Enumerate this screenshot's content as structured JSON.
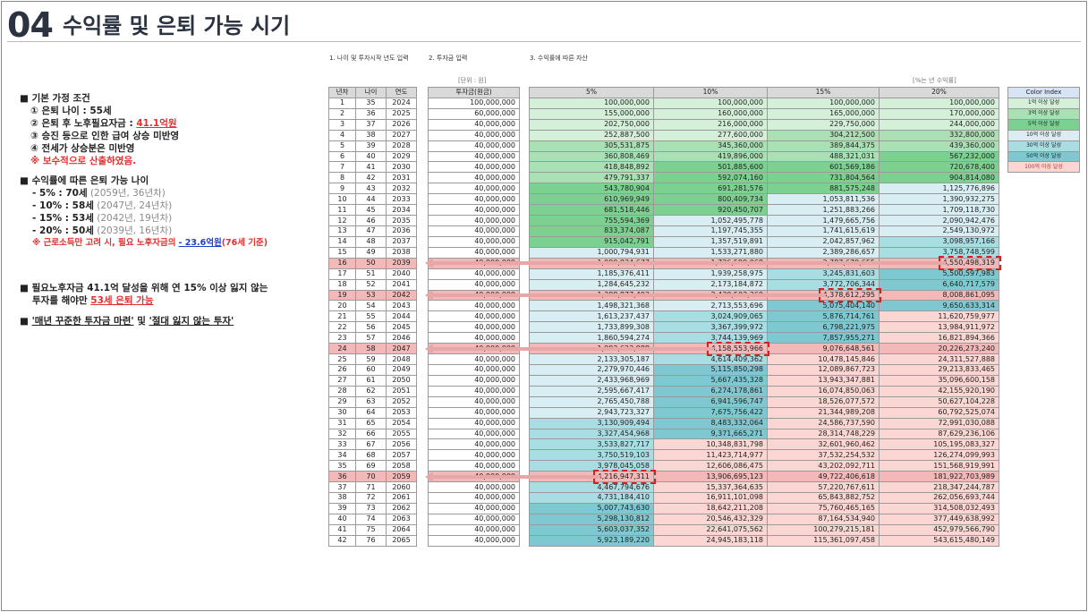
{
  "title": {
    "number": "04",
    "text": "수익률 및 은퇴 가능 시기"
  },
  "steps": [
    "1. 나이 및 투자시작 년도 입력",
    "2. 투자금 입력",
    "3. 수익률에 따른 자산"
  ],
  "notes": {
    "unit": "[단위 : 원]",
    "rate": "[%는 년 수익률]"
  },
  "left": {
    "assumptions_title": "■ 기본 가정 조건",
    "a1": "① 은퇴 나이 : 55세",
    "a2_prefix": "② 은퇴 후 노후필요자금 : ",
    "a2_value": "41.1억원",
    "a3": "③ 승진 등으로 인한 급여 상승 미반영",
    "a4": "④ 전세가 상승분은 미반영",
    "a5": "※ 보수적으로 산출하였음.",
    "ages_title": "■ 수익률에 따른 은퇴 가능 나이",
    "r1_main": "- 5% : 70세",
    "r1_sub": " (2059년, 36년차)",
    "r2_main": "- 10% : 58세",
    "r2_sub": " (2047년, 24년차)",
    "r3_main": "- 15% : 53세",
    "r3_sub": " (2042년, 19년차)",
    "r4_main": "- 20% : 50세",
    "r4_sub": " (2039년, 16년차)",
    "r5_prefix": "※ 근로소득만 고려 시, 필요 노후자금의",
    "r5_value": "- 23.6억원",
    "r5_suffix": "(76세 기준)",
    "c1_line1": "■ 필요노후자금 41.1억 달성을 위해 연 15% 이상 잃지 않는",
    "c1_line2_prefix": "투자를 해야만 ",
    "c1_line2_value": "53세 은퇴 가능",
    "c2_prefix": "■ ",
    "c2_a": "'매년 꾸준한 투자금 마련'",
    "c2_mid": " 및 ",
    "c2_b": "'절대 잃지 않는 투자'"
  },
  "table_headers": {
    "year_no": "년차",
    "age": "나이",
    "year": "연도",
    "invest": "투자금(원금)",
    "r5": "5%",
    "r10": "10%",
    "r15": "15%",
    "r20": "20%"
  },
  "rows": [
    {
      "n": "1",
      "age": "35",
      "year": "2024",
      "inv": "100,000,000",
      "v5": "100,000,000",
      "v10": "100,000,000",
      "v15": "100,000,000",
      "v20": "100,000,000"
    },
    {
      "n": "2",
      "age": "36",
      "year": "2025",
      "inv": "60,000,000",
      "v5": "155,000,000",
      "v10": "160,000,000",
      "v15": "165,000,000",
      "v20": "170,000,000"
    },
    {
      "n": "3",
      "age": "37",
      "year": "2026",
      "inv": "40,000,000",
      "v5": "202,750,000",
      "v10": "216,000,000",
      "v15": "229,750,000",
      "v20": "244,000,000"
    },
    {
      "n": "4",
      "age": "38",
      "year": "2027",
      "inv": "40,000,000",
      "v5": "252,887,500",
      "v10": "277,600,000",
      "v15": "304,212,500",
      "v20": "332,800,000"
    },
    {
      "n": "5",
      "age": "39",
      "year": "2028",
      "inv": "40,000,000",
      "v5": "305,531,875",
      "v10": "345,360,000",
      "v15": "389,844,375",
      "v20": "439,360,000"
    },
    {
      "n": "6",
      "age": "40",
      "year": "2029",
      "inv": "40,000,000",
      "v5": "360,808,469",
      "v10": "419,896,000",
      "v15": "488,321,031",
      "v20": "567,232,000"
    },
    {
      "n": "7",
      "age": "41",
      "year": "2030",
      "inv": "40,000,000",
      "v5": "418,848,892",
      "v10": "501,885,600",
      "v15": "601,569,186",
      "v20": "720,678,400"
    },
    {
      "n": "8",
      "age": "42",
      "year": "2031",
      "inv": "40,000,000",
      "v5": "479,791,337",
      "v10": "592,074,160",
      "v15": "731,804,564",
      "v20": "904,814,080"
    },
    {
      "n": "9",
      "age": "43",
      "year": "2032",
      "inv": "40,000,000",
      "v5": "543,780,904",
      "v10": "691,281,576",
      "v15": "881,575,248",
      "v20": "1,125,776,896"
    },
    {
      "n": "10",
      "age": "44",
      "year": "2033",
      "inv": "40,000,000",
      "v5": "610,969,949",
      "v10": "800,409,734",
      "v15": "1,053,811,536",
      "v20": "1,390,932,275"
    },
    {
      "n": "11",
      "age": "45",
      "year": "2034",
      "inv": "40,000,000",
      "v5": "681,518,446",
      "v10": "920,450,707",
      "v15": "1,251,883,266",
      "v20": "1,709,118,730"
    },
    {
      "n": "12",
      "age": "46",
      "year": "2035",
      "inv": "40,000,000",
      "v5": "755,594,369",
      "v10": "1,052,495,778",
      "v15": "1,479,665,756",
      "v20": "2,090,942,476"
    },
    {
      "n": "13",
      "age": "47",
      "year": "2036",
      "inv": "40,000,000",
      "v5": "833,374,087",
      "v10": "1,197,745,355",
      "v15": "1,741,615,619",
      "v20": "2,549,130,972"
    },
    {
      "n": "14",
      "age": "48",
      "year": "2037",
      "inv": "40,000,000",
      "v5": "915,042,791",
      "v10": "1,357,519,891",
      "v15": "2,042,857,962",
      "v20": "3,098,957,166"
    },
    {
      "n": "15",
      "age": "49",
      "year": "2038",
      "inv": "40,000,000",
      "v5": "1,000,794,931",
      "v10": "1,533,271,880",
      "v15": "2,389,286,657",
      "v20": "3,758,748,599"
    },
    {
      "n": "16",
      "age": "50",
      "year": "2039",
      "inv": "40,000,000",
      "v5": "1,090,834,677",
      "v10": "1,726,599,068",
      "v15": "2,787,679,655",
      "v20": "4,550,498,319"
    },
    {
      "n": "17",
      "age": "51",
      "year": "2040",
      "inv": "40,000,000",
      "v5": "1,185,376,411",
      "v10": "1,939,258,975",
      "v15": "3,245,831,603",
      "v20": "5,500,597,983"
    },
    {
      "n": "18",
      "age": "52",
      "year": "2041",
      "inv": "40,000,000",
      "v5": "1,284,645,232",
      "v10": "2,173,184,872",
      "v15": "3,772,706,344",
      "v20": "6,640,717,579"
    },
    {
      "n": "19",
      "age": "53",
      "year": "2042",
      "inv": "40,000,000",
      "v5": "1,388,877,493",
      "v10": "2,430,503,360",
      "v15": "4,378,612,295",
      "v20": "8,008,861,095"
    },
    {
      "n": "20",
      "age": "54",
      "year": "2043",
      "inv": "40,000,000",
      "v5": "1,498,321,368",
      "v10": "2,713,553,696",
      "v15": "5,075,404,140",
      "v20": "9,650,633,314"
    },
    {
      "n": "21",
      "age": "55",
      "year": "2044",
      "inv": "40,000,000",
      "v5": "1,613,237,437",
      "v10": "3,024,909,065",
      "v15": "5,876,714,761",
      "v20": "11,620,759,977"
    },
    {
      "n": "22",
      "age": "56",
      "year": "2045",
      "inv": "40,000,000",
      "v5": "1,733,899,308",
      "v10": "3,367,399,972",
      "v15": "6,798,221,975",
      "v20": "13,984,911,972"
    },
    {
      "n": "23",
      "age": "57",
      "year": "2046",
      "inv": "40,000,000",
      "v5": "1,860,594,274",
      "v10": "3,744,139,969",
      "v15": "7,857,955,271",
      "v20": "16,821,894,366"
    },
    {
      "n": "24",
      "age": "58",
      "year": "2047",
      "inv": "40,000,000",
      "v5": "1,993,623,988",
      "v10": "4,158,553,966",
      "v15": "9,076,648,561",
      "v20": "20,226,273,240"
    },
    {
      "n": "25",
      "age": "59",
      "year": "2048",
      "inv": "40,000,000",
      "v5": "2,133,305,187",
      "v10": "4,614,409,362",
      "v15": "10,478,145,846",
      "v20": "24,311,527,888"
    },
    {
      "n": "26",
      "age": "60",
      "year": "2049",
      "inv": "40,000,000",
      "v5": "2,279,970,446",
      "v10": "5,115,850,298",
      "v15": "12,089,867,723",
      "v20": "29,213,833,465"
    },
    {
      "n": "27",
      "age": "61",
      "year": "2050",
      "inv": "40,000,000",
      "v5": "2,433,968,969",
      "v10": "5,667,435,328",
      "v15": "13,943,347,881",
      "v20": "35,096,600,158"
    },
    {
      "n": "28",
      "age": "62",
      "year": "2051",
      "inv": "40,000,000",
      "v5": "2,595,667,417",
      "v10": "6,274,178,861",
      "v15": "16,074,850,063",
      "v20": "42,155,920,190"
    },
    {
      "n": "29",
      "age": "63",
      "year": "2052",
      "inv": "40,000,000",
      "v5": "2,765,450,788",
      "v10": "6,941,596,747",
      "v15": "18,526,077,572",
      "v20": "50,627,104,228"
    },
    {
      "n": "30",
      "age": "64",
      "year": "2053",
      "inv": "40,000,000",
      "v5": "2,943,723,327",
      "v10": "7,675,756,422",
      "v15": "21,344,989,208",
      "v20": "60,792,525,074"
    },
    {
      "n": "31",
      "age": "65",
      "year": "2054",
      "inv": "40,000,000",
      "v5": "3,130,909,494",
      "v10": "8,483,332,064",
      "v15": "24,586,737,590",
      "v20": "72,991,030,088"
    },
    {
      "n": "32",
      "age": "66",
      "year": "2055",
      "inv": "40,000,000",
      "v5": "3,327,454,968",
      "v10": "9,371,665,271",
      "v15": "28,314,748,229",
      "v20": "87,629,236,106"
    },
    {
      "n": "33",
      "age": "67",
      "year": "2056",
      "inv": "40,000,000",
      "v5": "3,533,827,717",
      "v10": "10,348,831,798",
      "v15": "32,601,960,462",
      "v20": "105,195,083,327"
    },
    {
      "n": "34",
      "age": "68",
      "year": "2057",
      "inv": "40,000,000",
      "v5": "3,750,519,103",
      "v10": "11,423,714,977",
      "v15": "37,532,254,532",
      "v20": "126,274,099,993"
    },
    {
      "n": "35",
      "age": "69",
      "year": "2058",
      "inv": "40,000,000",
      "v5": "3,978,045,058",
      "v10": "12,606,086,475",
      "v15": "43,202,092,711",
      "v20": "151,568,919,991"
    },
    {
      "n": "36",
      "age": "70",
      "year": "2059",
      "inv": "40,000,000",
      "v5": "4,216,947,311",
      "v10": "13,906,695,123",
      "v15": "49,722,406,618",
      "v20": "181,922,703,989"
    },
    {
      "n": "37",
      "age": "71",
      "year": "2060",
      "inv": "40,000,000",
      "v5": "4,467,794,676",
      "v10": "15,337,364,635",
      "v15": "57,220,767,611",
      "v20": "218,347,244,787"
    },
    {
      "n": "38",
      "age": "72",
      "year": "2061",
      "inv": "40,000,000",
      "v5": "4,731,184,410",
      "v10": "16,911,101,098",
      "v15": "65,843,882,752",
      "v20": "262,056,693,744"
    },
    {
      "n": "39",
      "age": "73",
      "year": "2062",
      "inv": "40,000,000",
      "v5": "5,007,743,630",
      "v10": "18,642,211,208",
      "v15": "75,760,465,165",
      "v20": "314,508,032,493"
    },
    {
      "n": "40",
      "age": "74",
      "year": "2063",
      "inv": "40,000,000",
      "v5": "5,298,130,812",
      "v10": "20,546,432,329",
      "v15": "87,164,534,940",
      "v20": "377,449,638,992"
    },
    {
      "n": "41",
      "age": "75",
      "year": "2064",
      "inv": "40,000,000",
      "v5": "5,603,037,352",
      "v10": "22,641,075,562",
      "v15": "100,279,215,181",
      "v20": "452,979,566,790"
    },
    {
      "n": "42",
      "age": "76",
      "year": "2065",
      "inv": "40,000,000",
      "v5": "5,923,189,220",
      "v10": "24,945,183,118",
      "v15": "115,361,097,458",
      "v20": "543,615,480,149"
    }
  ],
  "highlight_rows": [
    16,
    19,
    24,
    36
  ],
  "color_index": {
    "title": "Color Index",
    "items": [
      {
        "label": "1억 이상 달성",
        "color": "#d4f0d9"
      },
      {
        "label": "3억 이상 달성",
        "color": "#a9e1b5"
      },
      {
        "label": "5억 이상 달성",
        "color": "#7cd190"
      },
      {
        "label": "10억 이상 달성",
        "color": "#d9eef2"
      },
      {
        "label": "30억 이상 달성",
        "color": "#a9dde4"
      },
      {
        "label": "50억 이상 달성",
        "color": "#7ec9d1"
      },
      {
        "label": "100억 이상 달성",
        "color": "#fbd6d2"
      }
    ]
  }
}
